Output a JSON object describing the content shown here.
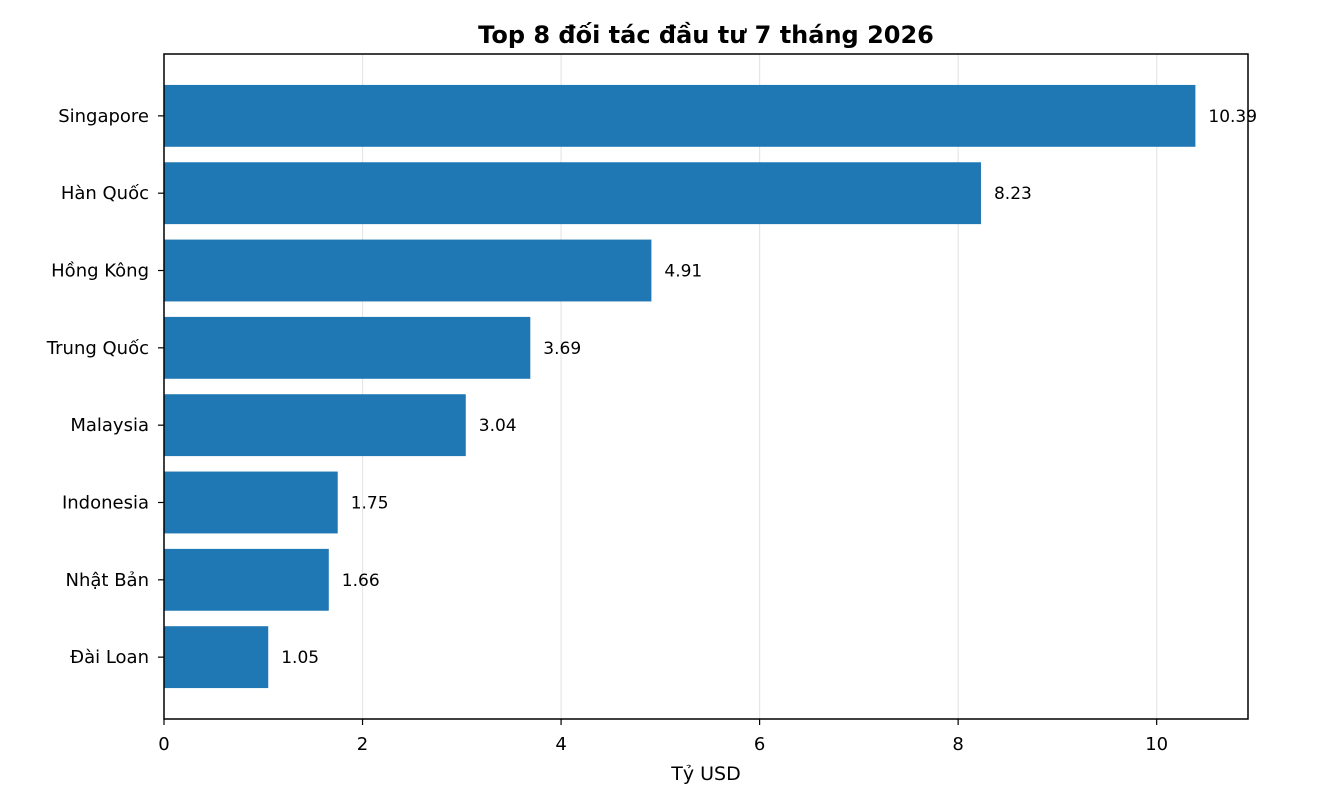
{
  "chart_data": {
    "type": "bar",
    "orientation": "horizontal",
    "title": "Top 8 đối tác đầu tư 7 tháng 2026",
    "xlabel": "Tỷ USD",
    "ylabel": "",
    "categories": [
      "Singapore",
      "Hàn Quốc",
      "Hồng Kông",
      "Trung Quốc",
      "Malaysia",
      "Indonesia",
      "Nhật Bản",
      "Đài Loan"
    ],
    "values": [
      10.39,
      8.23,
      4.91,
      3.69,
      3.04,
      1.75,
      1.66,
      1.05
    ],
    "data_labels": [
      "10.39",
      "8.23",
      "4.91",
      "3.69",
      "3.04",
      "1.75",
      "1.66",
      "1.05"
    ],
    "xlim": [
      0,
      10.92
    ],
    "x_ticks": [
      0,
      2,
      4,
      6,
      8,
      10
    ],
    "x_tick_labels": [
      "0",
      "2",
      "4",
      "6",
      "8",
      "10"
    ],
    "grid": "vertical",
    "bar_color": "#1f77b4",
    "grid_color": "#e6e6e6",
    "legend": "none"
  }
}
